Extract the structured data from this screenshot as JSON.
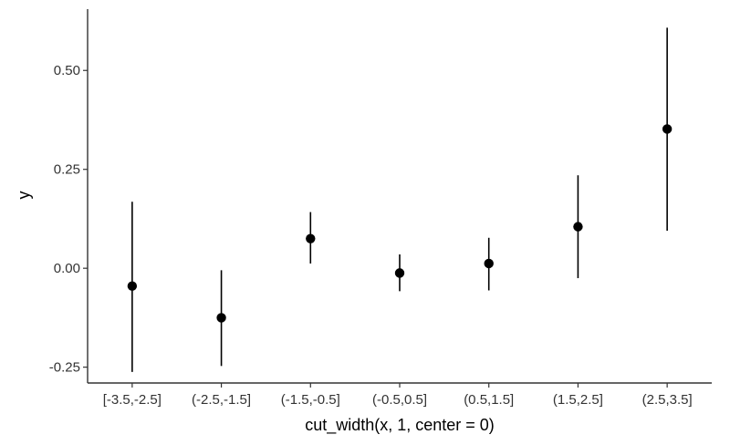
{
  "chart_data": {
    "type": "pointrange",
    "xlabel": "cut_width(x, 1, center = 0)",
    "ylabel": "y",
    "categories": [
      "[-3.5,-2.5]",
      "(-2.5,-1.5]",
      "(-1.5,-0.5]",
      "(-0.5,0.5]",
      "(0.5,1.5]",
      "(1.5,2.5]",
      "(2.5,3.5]"
    ],
    "values": [
      -0.045,
      -0.125,
      0.075,
      -0.012,
      0.012,
      0.105,
      0.352
    ],
    "lower": [
      -0.262,
      -0.247,
      0.012,
      -0.058,
      -0.056,
      -0.025,
      0.095
    ],
    "upper": [
      0.168,
      -0.005,
      0.142,
      0.035,
      0.077,
      0.235,
      0.608
    ],
    "ylim": [
      -0.29,
      0.655
    ],
    "yticks": [
      -0.25,
      0,
      0.25,
      0.5
    ],
    "ytick_labels": [
      "-0.25",
      "0.00",
      "0.25",
      "0.50"
    ],
    "grid": false,
    "legend": "none"
  }
}
